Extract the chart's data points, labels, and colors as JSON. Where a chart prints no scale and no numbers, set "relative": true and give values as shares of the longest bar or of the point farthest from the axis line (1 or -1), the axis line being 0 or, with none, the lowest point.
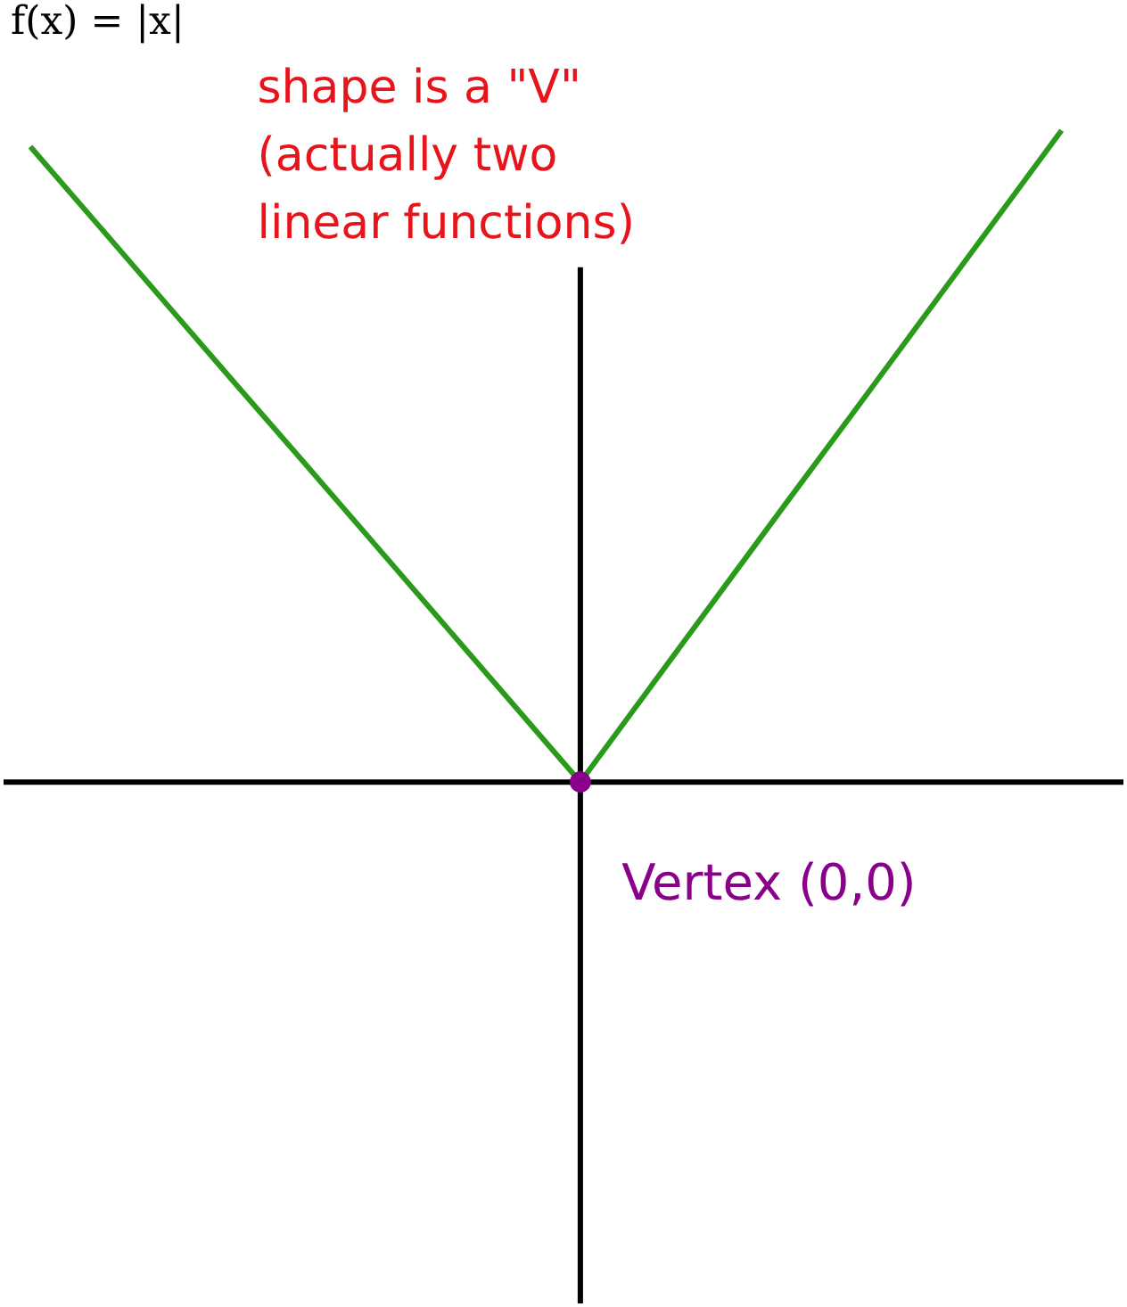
{
  "chart_data": {
    "type": "line",
    "title": "f(x) = |x|",
    "relative": true,
    "categories": [
      null,
      null,
      null,
      null,
      null,
      null,
      null,
      null,
      null,
      null,
      null,
      null,
      null,
      null,
      null,
      null
    ],
    "series": [
      {
        "color": "#2a9a1a",
        "values": [
          0.975,
          0.853,
          0.731,
          0.609,
          0.488,
          0.366,
          0.244,
          0.122,
          0,
          0.143,
          0.286,
          0.429,
          0.571,
          0.714,
          0.857,
          1
        ]
      }
    ],
    "annotations": [
      "shape is a \"V\" (actually two linear functions)",
      "Vertex (0,0)"
    ]
  }
}
